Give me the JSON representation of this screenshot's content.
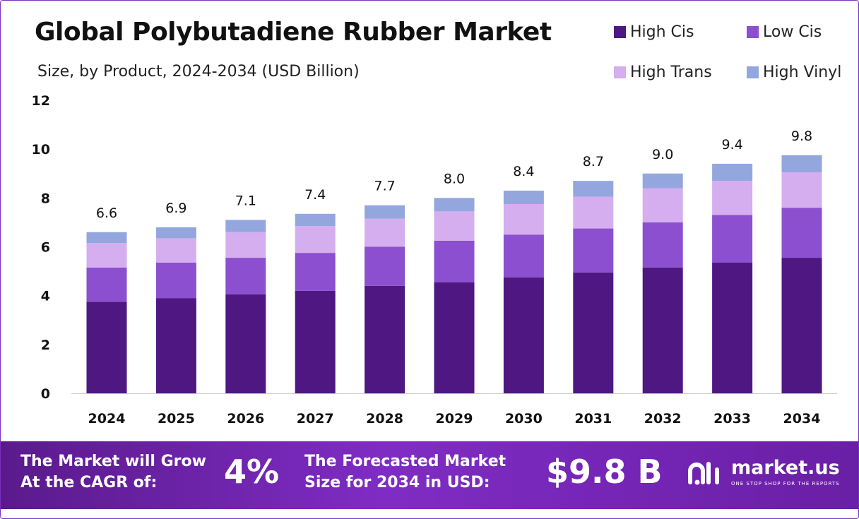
{
  "header": {
    "title": "Global Polybutadiene Rubber Market",
    "subtitle": "Size, by Product, 2024-2034 (USD Billion)"
  },
  "colors": {
    "high_cis": "#4e1782",
    "low_cis": "#8b4fcf",
    "high_trans": "#d4aeee",
    "high_vinyl": "#93a7de",
    "baseline": "#cccccc"
  },
  "chart_data": {
    "type": "bar",
    "stacked": true,
    "categories": [
      "2024",
      "2025",
      "2026",
      "2027",
      "2028",
      "2029",
      "2030",
      "2031",
      "2032",
      "2033",
      "2034"
    ],
    "series": [
      {
        "name": "High Cis",
        "values": [
          3.75,
          3.9,
          4.05,
          4.2,
          4.4,
          4.55,
          4.75,
          4.95,
          5.15,
          5.35,
          5.55
        ]
      },
      {
        "name": "Low Cis",
        "values": [
          1.4,
          1.45,
          1.5,
          1.55,
          1.6,
          1.7,
          1.75,
          1.8,
          1.85,
          1.95,
          2.05
        ]
      },
      {
        "name": "High Trans",
        "values": [
          1.0,
          1.0,
          1.05,
          1.1,
          1.15,
          1.2,
          1.25,
          1.3,
          1.4,
          1.4,
          1.45
        ]
      },
      {
        "name": "High Vinyl",
        "values": [
          0.45,
          0.45,
          0.5,
          0.5,
          0.55,
          0.55,
          0.55,
          0.65,
          0.6,
          0.7,
          0.7
        ]
      }
    ],
    "totals": [
      "6.6",
      "6.9",
      "7.1",
      "7.4",
      "7.7",
      "8.0",
      "8.4",
      "8.7",
      "9.0",
      "9.4",
      "9.8"
    ],
    "ylim": [
      0,
      12
    ],
    "yticks": [
      "0",
      "2",
      "4",
      "6",
      "8",
      "10",
      "12"
    ],
    "grid": false,
    "legend_position": "top-right"
  },
  "banner": {
    "cagr_label_line1": "The Market will Grow",
    "cagr_label_line2": "At the CAGR of:",
    "cagr_value": "4%",
    "forecast_label_line1": "The Forecasted Market",
    "forecast_label_line2": "Size for 2034 in USD:",
    "forecast_value": "$9.8 B"
  },
  "logo": {
    "name": "market.us",
    "tagline": "ONE STOP SHOP FOR THE REPORTS"
  }
}
